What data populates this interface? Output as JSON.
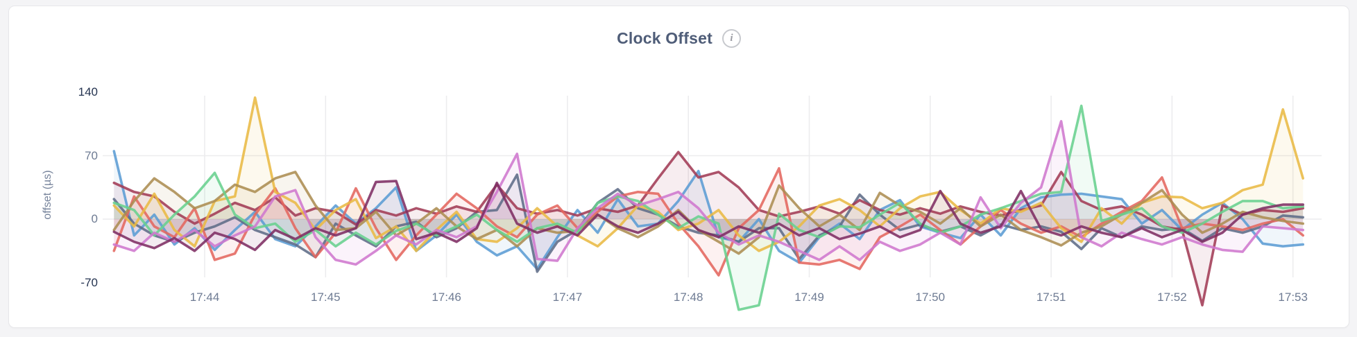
{
  "header": {
    "title": "Clock Offset",
    "info_icon": "info-icon",
    "info_glyph": "i"
  },
  "colors": {
    "page_background": "#f4f4f6",
    "card_background": "#ffffff",
    "card_border": "#e7e7ea",
    "title_text": "#4f5d78",
    "axis_text": "#6e7b93",
    "axis_text_extreme": "#243350",
    "axis_title_text": "#76839b",
    "gridline": "#ececee"
  },
  "chart_data": {
    "type": "line",
    "title": "Clock Offset",
    "xlabel": "",
    "ylabel": "offset (µs)",
    "ylim": [
      -70,
      140
    ],
    "yticks": [
      140,
      70,
      0,
      -70
    ],
    "ytick_extreme": [
      140,
      -70
    ],
    "xticks": [
      "17:44",
      "17:45",
      "17:46",
      "17:47",
      "17:48",
      "17:49",
      "17:50",
      "17:51",
      "17:52",
      "17:53"
    ],
    "x_start_offset_seconds": -45,
    "x_interval_seconds": 10,
    "grid": true,
    "legend": "none",
    "area_fill_opacity": 0.09,
    "line_opacity": 0.88,
    "series": [
      {
        "name": "series-1",
        "color": "#5B9CD4",
        "values": [
          75,
          -18,
          5,
          -28,
          -10,
          -34,
          -12,
          8,
          -22,
          -30,
          -8,
          15,
          -5,
          12,
          35,
          -35,
          -18,
          5,
          -25,
          -40,
          -30,
          -55,
          -20,
          10,
          -15,
          22,
          -8,
          -5,
          20,
          53,
          -20,
          -25,
          0,
          -35,
          -48,
          -20,
          -5,
          -22,
          10,
          21,
          -8,
          -15,
          -21,
          5,
          -18,
          12,
          24,
          27,
          28,
          25,
          22,
          -5,
          10,
          -12,
          5,
          18,
          0,
          -27,
          -30,
          -28
        ]
      },
      {
        "name": "series-2",
        "color": "#5E6C87",
        "values": [
          22,
          -5,
          -18,
          -25,
          -15,
          -8,
          2,
          -12,
          -20,
          -28,
          -42,
          -5,
          -18,
          -30,
          -8,
          -3,
          -20,
          -10,
          8,
          10,
          49,
          -58,
          -25,
          -12,
          18,
          33,
          12,
          5,
          -8,
          -15,
          -18,
          -25,
          -10,
          -10,
          -44,
          -18,
          -8,
          27,
          5,
          -12,
          -6,
          -14,
          -8,
          -18,
          -6,
          -12,
          -8,
          -14,
          -33,
          -10,
          -20,
          -8,
          -12,
          -10,
          -24,
          -10,
          -15,
          -8,
          4,
          2
        ]
      },
      {
        "name": "series-3",
        "color": "#A23B55",
        "values": [
          40,
          30,
          25,
          8,
          -5,
          6,
          18,
          10,
          24,
          4,
          12,
          8,
          -6,
          10,
          4,
          12,
          6,
          14,
          8,
          38,
          12,
          6,
          10,
          4,
          12,
          8,
          15,
          45,
          74,
          46,
          52,
          35,
          10,
          3,
          8,
          14,
          6,
          21,
          10,
          5,
          12,
          6,
          14,
          8,
          4,
          10,
          15,
          52,
          20,
          10,
          14,
          5,
          -8,
          -12,
          -95,
          15,
          5,
          10,
          8,
          12
        ]
      },
      {
        "name": "series-4",
        "color": "#E4675F",
        "values": [
          -35,
          25,
          -8,
          -20,
          12,
          -45,
          -38,
          5,
          34,
          -10,
          -42,
          -15,
          34,
          -10,
          -45,
          -18,
          5,
          28,
          12,
          -8,
          -20,
          5,
          15,
          -10,
          8,
          25,
          30,
          28,
          -5,
          -30,
          -62,
          -10,
          10,
          56,
          -48,
          -50,
          -45,
          -55,
          -20,
          -8,
          5,
          -12,
          -28,
          -8,
          10,
          -5,
          -15,
          -8,
          -20,
          -5,
          8,
          20,
          46,
          -10,
          -5,
          -8,
          -12,
          -5,
          0,
          -18
        ]
      },
      {
        "name": "series-5",
        "color": "#E9B944",
        "values": [
          15,
          -8,
          28,
          -12,
          -30,
          20,
          25,
          134,
          30,
          18,
          -12,
          10,
          22,
          -21,
          -8,
          -35,
          -12,
          8,
          -22,
          -25,
          -10,
          12,
          -8,
          -18,
          -30,
          -10,
          15,
          8,
          -12,
          -5,
          10,
          -18,
          -35,
          -25,
          -8,
          15,
          22,
          10,
          -8,
          12,
          25,
          30,
          10,
          -5,
          12,
          8,
          18,
          -10,
          -25,
          12,
          -5,
          18,
          25,
          24,
          12,
          18,
          32,
          38,
          121,
          45
        ]
      },
      {
        "name": "series-6",
        "color": "#AC8D52",
        "values": [
          -12,
          20,
          45,
          30,
          12,
          20,
          38,
          30,
          45,
          52,
          15,
          -12,
          -10,
          8,
          -18,
          -5,
          12,
          -8,
          -22,
          -12,
          -30,
          -10,
          -15,
          -13,
          5,
          -10,
          -20,
          -8,
          10,
          -12,
          -25,
          -38,
          -20,
          37,
          12,
          -8,
          5,
          -12,
          29,
          15,
          8,
          -5,
          12,
          -8,
          5,
          -12,
          -20,
          -29,
          -15,
          -8,
          5,
          18,
          32,
          5,
          -15,
          -5,
          8,
          2,
          -2,
          -5
        ]
      },
      {
        "name": "series-7",
        "color": "#68D08E",
        "values": [
          18,
          10,
          -18,
          5,
          25,
          51,
          5,
          -10,
          -5,
          -25,
          -12,
          -30,
          -15,
          -28,
          -13,
          -5,
          -18,
          -8,
          5,
          -12,
          -25,
          -10,
          -5,
          -15,
          18,
          25,
          20,
          5,
          -10,
          3,
          -5,
          -100,
          -95,
          6,
          -12,
          -20,
          -8,
          -9,
          5,
          18,
          -5,
          -15,
          -8,
          5,
          12,
          20,
          28,
          30,
          125,
          -2,
          5,
          12,
          -8,
          -15,
          -5,
          8,
          20,
          20,
          12,
          14
        ]
      },
      {
        "name": "series-8",
        "color": "#CF77CE",
        "values": [
          -28,
          -35,
          -15,
          -25,
          -12,
          -30,
          -18,
          -8,
          25,
          32,
          -20,
          -45,
          -50,
          -35,
          -18,
          -28,
          -12,
          -20,
          -8,
          30,
          72,
          -44,
          -46,
          -10,
          12,
          28,
          15,
          22,
          30,
          12,
          -15,
          -28,
          -18,
          -25,
          -35,
          -45,
          -30,
          -45,
          -25,
          -35,
          -28,
          -15,
          -28,
          24,
          -10,
          18,
          35,
          108,
          -20,
          -30,
          -15,
          -22,
          -28,
          -20,
          -28,
          -34,
          -36,
          -8,
          -10,
          -12
        ]
      },
      {
        "name": "series-9",
        "color": "#7E2D63",
        "values": [
          -14,
          -25,
          -32,
          -21,
          -35,
          -15,
          -22,
          -34,
          -12,
          -22,
          -10,
          -18,
          -10,
          41,
          42,
          -22,
          -15,
          -25,
          -10,
          40,
          -5,
          -15,
          -8,
          -18,
          5,
          -8,
          -15,
          -5,
          8,
          -12,
          -20,
          -8,
          -15,
          -5,
          -18,
          -10,
          -22,
          -16,
          -8,
          -20,
          -12,
          31,
          -5,
          -15,
          -8,
          31,
          -11,
          -18,
          -8,
          -15,
          -20,
          -10,
          -20,
          -12,
          -25,
          -15,
          5,
          12,
          16,
          16
        ]
      }
    ]
  }
}
